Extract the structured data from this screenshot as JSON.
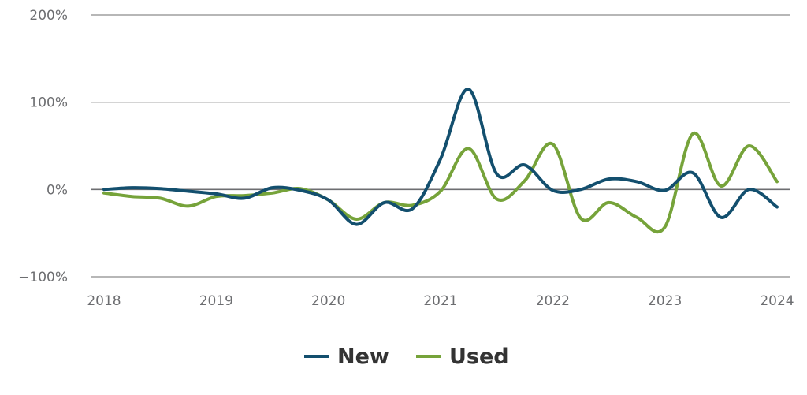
{
  "chart_data": {
    "type": "line",
    "ylim": [
      -100,
      200
    ],
    "y_ticks": [
      200,
      100,
      0,
      -100
    ],
    "y_tick_labels": [
      "200%",
      "100%",
      "0%",
      "−100%"
    ],
    "y_unit": "%",
    "xlim": [
      2018,
      2024
    ],
    "x_ticks": [
      2018,
      2019,
      2020,
      2021,
      2022,
      2023,
      2024
    ],
    "x_tick_labels": [
      "2018",
      "2019",
      "2020",
      "2021",
      "2022",
      "2023",
      "2024"
    ],
    "grid": true,
    "legend_position": "bottom-center",
    "series": [
      {
        "name": "New",
        "color": "#134f6e",
        "x": [
          2018.0,
          2018.25,
          2018.5,
          2018.75,
          2019.0,
          2019.25,
          2019.5,
          2019.75,
          2020.0,
          2020.25,
          2020.5,
          2020.75,
          2021.0,
          2021.25,
          2021.5,
          2021.75,
          2022.0,
          2022.25,
          2022.5,
          2022.75,
          2023.0,
          2023.25,
          2023.5,
          2023.75,
          2024.0
        ],
        "values": [
          0,
          2,
          1,
          -2,
          -5,
          -10,
          2,
          -1,
          -12,
          -40,
          -15,
          -22,
          35,
          115,
          18,
          28,
          -1,
          0,
          12,
          9,
          -1,
          19,
          -32,
          0,
          -20
        ]
      },
      {
        "name": "Used",
        "color": "#76a33a",
        "x": [
          2018.0,
          2018.25,
          2018.5,
          2018.75,
          2019.0,
          2019.25,
          2019.5,
          2019.75,
          2020.0,
          2020.25,
          2020.5,
          2020.75,
          2021.0,
          2021.25,
          2021.5,
          2021.75,
          2022.0,
          2022.25,
          2022.5,
          2022.75,
          2023.0,
          2023.25,
          2023.5,
          2023.75,
          2024.0
        ],
        "values": [
          -4,
          -8,
          -10,
          -19,
          -8,
          -7,
          -4,
          1,
          -12,
          -34,
          -15,
          -18,
          -2,
          47,
          -11,
          10,
          52,
          -33,
          -15,
          -32,
          -43,
          64,
          4,
          50,
          9
        ]
      }
    ]
  }
}
